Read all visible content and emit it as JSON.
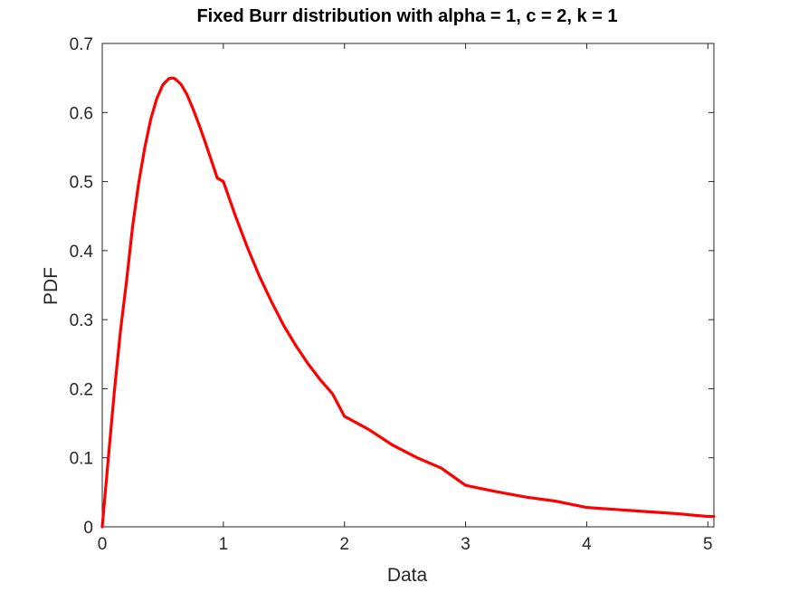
{
  "chart_data": {
    "type": "line",
    "title": "Fixed Burr distribution with alpha = 1, c = 2, k = 1",
    "xlabel": "Data",
    "ylabel": "PDF",
    "xlim": [
      0,
      5.05
    ],
    "ylim": [
      0,
      0.7
    ],
    "xticks": [
      "0",
      "1",
      "2",
      "3",
      "4",
      "5"
    ],
    "yticks": [
      "0",
      "0.1",
      "0.2",
      "0.3",
      "0.4",
      "0.5",
      "0.6",
      "0.7"
    ],
    "grid": false,
    "legend": "none",
    "series": [
      {
        "color": "#ff0000",
        "x": [
          0,
          0.05,
          0.1,
          0.15,
          0.2,
          0.25,
          0.3,
          0.35,
          0.4,
          0.45,
          0.5,
          0.55,
          0.577,
          0.6,
          0.65,
          0.7,
          0.75,
          0.8,
          0.85,
          0.9,
          0.95,
          1.0,
          1.1,
          1.2,
          1.3,
          1.4,
          1.5,
          1.6,
          1.7,
          1.8,
          1.9,
          2.0,
          2.2,
          2.4,
          2.6,
          2.8,
          3.0,
          3.25,
          3.5,
          3.75,
          4.0,
          4.25,
          4.5,
          4.75,
          5.0,
          5.05
        ],
        "y": [
          0,
          0.099,
          0.196,
          0.283,
          0.355,
          0.434,
          0.497,
          0.548,
          0.59,
          0.62,
          0.64,
          0.649,
          0.65,
          0.649,
          0.641,
          0.626,
          0.605,
          0.582,
          0.557,
          0.531,
          0.505,
          0.5,
          0.45,
          0.404,
          0.362,
          0.325,
          0.291,
          0.262,
          0.236,
          0.213,
          0.193,
          0.16,
          0.141,
          0.118,
          0.1,
          0.085,
          0.06,
          0.051,
          0.043,
          0.037,
          0.028,
          0.025,
          0.022,
          0.019,
          0.015,
          0.015
        ]
      }
    ]
  }
}
